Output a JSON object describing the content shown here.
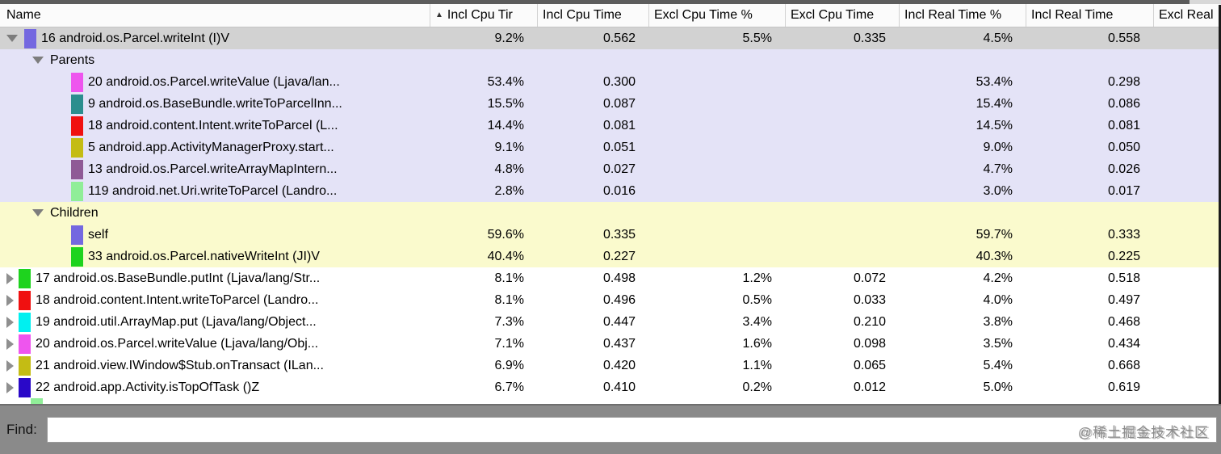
{
  "header": {
    "sort_arrow": "▲",
    "columns": [
      {
        "label": "Name"
      },
      {
        "label": "Incl Cpu Tir",
        "sorted": true
      },
      {
        "label": "Incl Cpu Time"
      },
      {
        "label": "Excl Cpu Time %"
      },
      {
        "label": "Excl Cpu Time"
      },
      {
        "label": "Incl Real Time %"
      },
      {
        "label": "Incl Real Time"
      },
      {
        "label": "Excl Real"
      }
    ]
  },
  "rows": [
    {
      "type": "selected",
      "expander": "down",
      "swatch": "#7468e0",
      "name": "16 android.os.Parcel.writeInt (I)V",
      "values": [
        "9.2%",
        "0.562",
        "5.5%",
        "0.335",
        "4.5%",
        "0.558",
        ""
      ]
    },
    {
      "type": "section",
      "section": "parents",
      "expander": "down",
      "name": "Parents",
      "values": [
        "",
        "",
        "",
        "",
        "",
        "",
        ""
      ]
    },
    {
      "type": "sub",
      "section": "parents",
      "swatch": "#ee55ee",
      "name": "20 android.os.Parcel.writeValue (Ljava/lan...",
      "values": [
        "53.4%",
        "0.300",
        "",
        "",
        "53.4%",
        "0.298",
        ""
      ]
    },
    {
      "type": "sub",
      "section": "parents",
      "swatch": "#2b8e8e",
      "name": "9 android.os.BaseBundle.writeToParcelInn...",
      "values": [
        "15.5%",
        "0.087",
        "",
        "",
        "15.4%",
        "0.086",
        ""
      ]
    },
    {
      "type": "sub",
      "section": "parents",
      "swatch": "#f01010",
      "name": "18 android.content.Intent.writeToParcel (L...",
      "values": [
        "14.4%",
        "0.081",
        "",
        "",
        "14.5%",
        "0.081",
        ""
      ]
    },
    {
      "type": "sub",
      "section": "parents",
      "swatch": "#c4bc14",
      "name": "5 android.app.ActivityManagerProxy.start...",
      "values": [
        "9.1%",
        "0.051",
        "",
        "",
        "9.0%",
        "0.050",
        ""
      ]
    },
    {
      "type": "sub",
      "section": "parents",
      "swatch": "#8f5a96",
      "name": "13 android.os.Parcel.writeArrayMapIntern...",
      "values": [
        "4.8%",
        "0.027",
        "",
        "",
        "4.7%",
        "0.026",
        ""
      ]
    },
    {
      "type": "sub",
      "section": "parents",
      "swatch": "#90ee98",
      "name": "119 android.net.Uri.writeToParcel (Landro...",
      "values": [
        "2.8%",
        "0.016",
        "",
        "",
        "3.0%",
        "0.017",
        ""
      ]
    },
    {
      "type": "section",
      "section": "children",
      "expander": "down",
      "name": "Children",
      "values": [
        "",
        "",
        "",
        "",
        "",
        "",
        ""
      ]
    },
    {
      "type": "sub",
      "section": "children",
      "swatch": "#7468e0",
      "name": "self",
      "values": [
        "59.6%",
        "0.335",
        "",
        "",
        "59.7%",
        "0.333",
        ""
      ]
    },
    {
      "type": "sub",
      "section": "children",
      "swatch": "#1ed31e",
      "name": "33 android.os.Parcel.nativeWriteInt (JI)V",
      "values": [
        "40.4%",
        "0.227",
        "",
        "",
        "40.3%",
        "0.225",
        ""
      ]
    },
    {
      "type": "main",
      "expander": "right",
      "swatch": "#1ed31e",
      "name": "17 android.os.BaseBundle.putInt (Ljava/lang/Str...",
      "values": [
        "8.1%",
        "0.498",
        "1.2%",
        "0.072",
        "4.2%",
        "0.518",
        ""
      ]
    },
    {
      "type": "main",
      "expander": "right",
      "swatch": "#f01010",
      "name": "18 android.content.Intent.writeToParcel (Landro...",
      "values": [
        "8.1%",
        "0.496",
        "0.5%",
        "0.033",
        "4.0%",
        "0.497",
        ""
      ]
    },
    {
      "type": "main",
      "expander": "right",
      "swatch": "#00f0f0",
      "name": "19 android.util.ArrayMap.put (Ljava/lang/Object...",
      "values": [
        "7.3%",
        "0.447",
        "3.4%",
        "0.210",
        "3.8%",
        "0.468",
        ""
      ]
    },
    {
      "type": "main",
      "expander": "right",
      "swatch": "#ee55ee",
      "name": "20 android.os.Parcel.writeValue (Ljava/lang/Obj...",
      "values": [
        "7.1%",
        "0.437",
        "1.6%",
        "0.098",
        "3.5%",
        "0.434",
        ""
      ]
    },
    {
      "type": "main",
      "expander": "right",
      "swatch": "#c4bc14",
      "name": "21 android.view.IWindow$Stub.onTransact (ILan...",
      "values": [
        "6.9%",
        "0.420",
        "1.1%",
        "0.065",
        "5.4%",
        "0.668",
        ""
      ]
    },
    {
      "type": "main",
      "expander": "right",
      "swatch": "#2a08c8",
      "name": "22 android.app.Activity.isTopOfTask ()Z",
      "values": [
        "6.7%",
        "0.410",
        "0.2%",
        "0.012",
        "5.0%",
        "0.619",
        ""
      ]
    },
    {
      "type": "partial",
      "swatch": "#90ee98",
      "name": "",
      "values": [
        "",
        "",
        "",
        "",
        "",
        "",
        ""
      ]
    }
  ],
  "find_bar": {
    "label": "Find:",
    "input_value": "",
    "watermark": "@稀土掘金技术社区"
  },
  "colors": {
    "selected_row_bg": "#d2d2d2",
    "parents_section_bg": "#e4e3f7",
    "children_section_bg": "#fafacd",
    "find_bar_bg": "#8a8a8a",
    "scrollbar_thumb": "#5c5c5c"
  }
}
